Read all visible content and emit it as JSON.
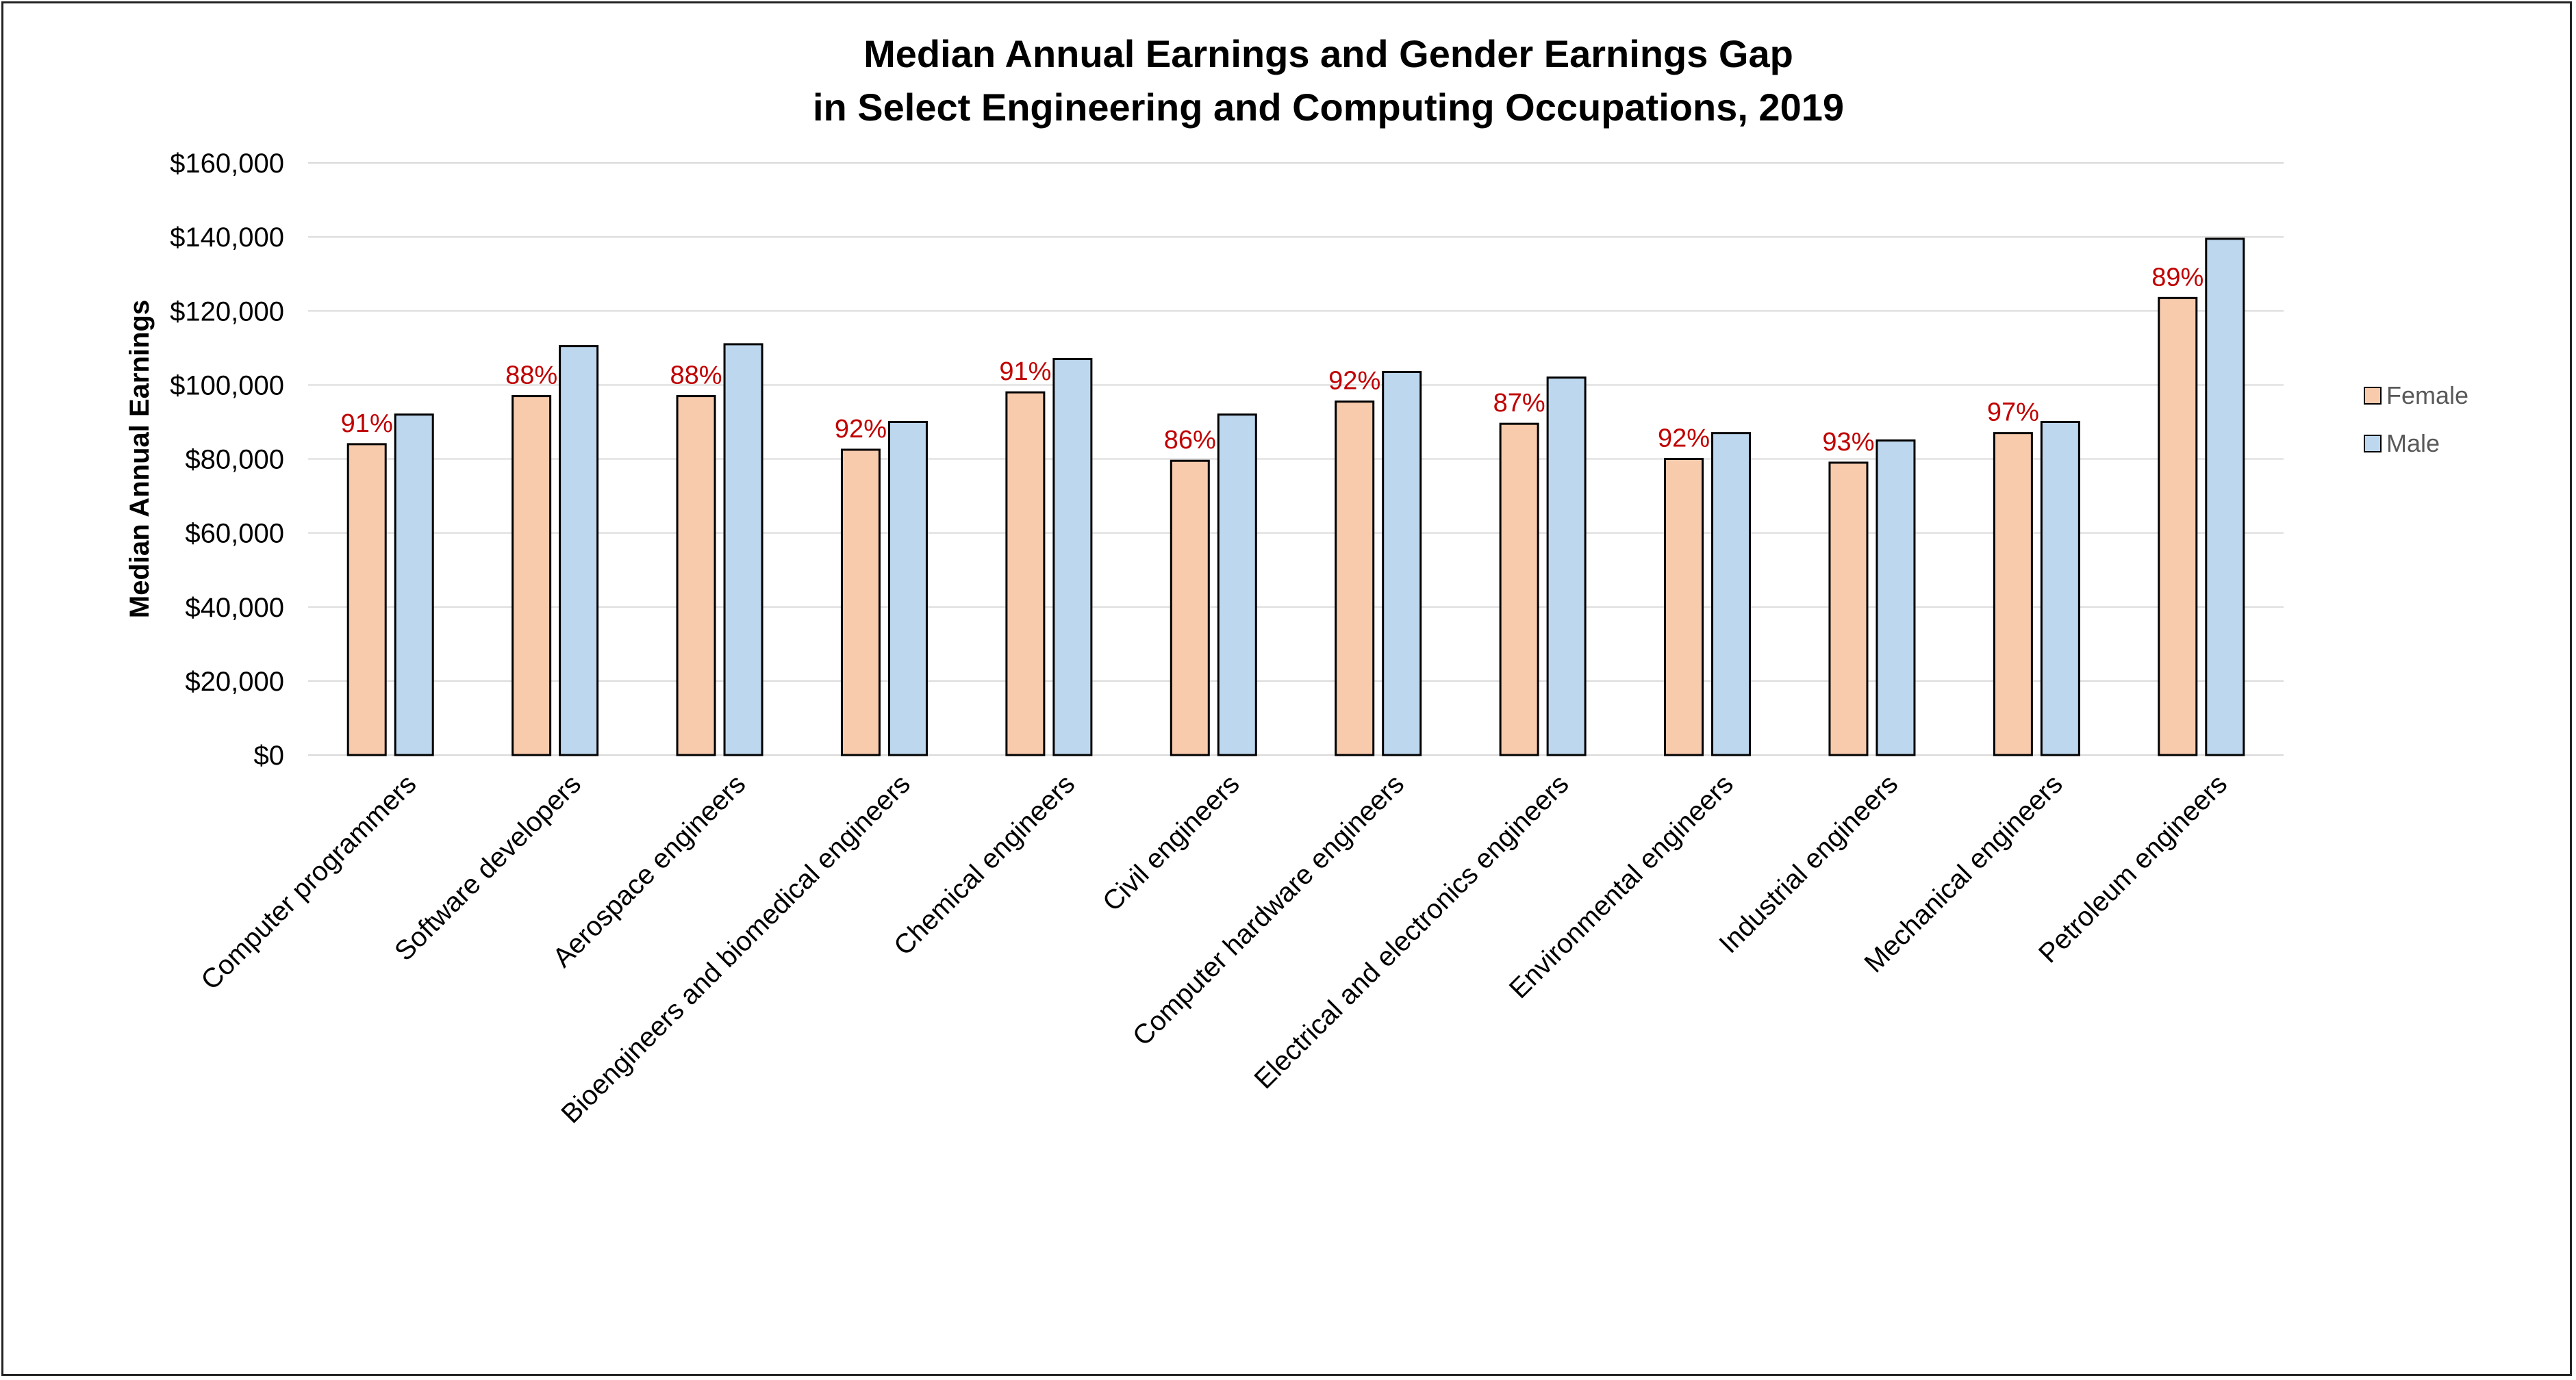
{
  "chart_data": {
    "type": "bar",
    "title": [
      "Median Annual Earnings and Gender Earnings Gap",
      "in Select Engineering and Computing Occupations, 2019"
    ],
    "ylabel": "Median Annual Earnings",
    "xlabel": "",
    "ylim": [
      0,
      160000
    ],
    "yticks": [
      "$0",
      "$20,000",
      "$40,000",
      "$60,000",
      "$80,000",
      "$100,000",
      "$120,000",
      "$140,000",
      "$160,000"
    ],
    "grid": true,
    "legend_position": "right",
    "categories": [
      "Computer programmers",
      "Software developers",
      "Aerospace engineers",
      "Bioengineers and biomedical engineers",
      "Chemical engineers",
      "Civil engineers",
      "Computer hardware engineers",
      "Electrical and electronics engineers",
      "Environmental engineers",
      "Industrial engineers",
      "Mechanical engineers",
      "Petroleum engineers"
    ],
    "series": [
      {
        "name": "Female",
        "color": "#F8CBAD",
        "values": [
          84000,
          97000,
          97000,
          82500,
          98000,
          79500,
          95500,
          89500,
          80000,
          79000,
          87000,
          123500
        ]
      },
      {
        "name": "Male",
        "color": "#BDD7EE",
        "values": [
          92000,
          110500,
          111000,
          90000,
          107000,
          92000,
          103500,
          102000,
          87000,
          85000,
          90000,
          139500
        ]
      }
    ],
    "annotations": [
      "91%",
      "88%",
      "88%",
      "92%",
      "91%",
      "86%",
      "92%",
      "87%",
      "92%",
      "93%",
      "97%",
      "89%"
    ],
    "annotation_color": "#C00000"
  }
}
